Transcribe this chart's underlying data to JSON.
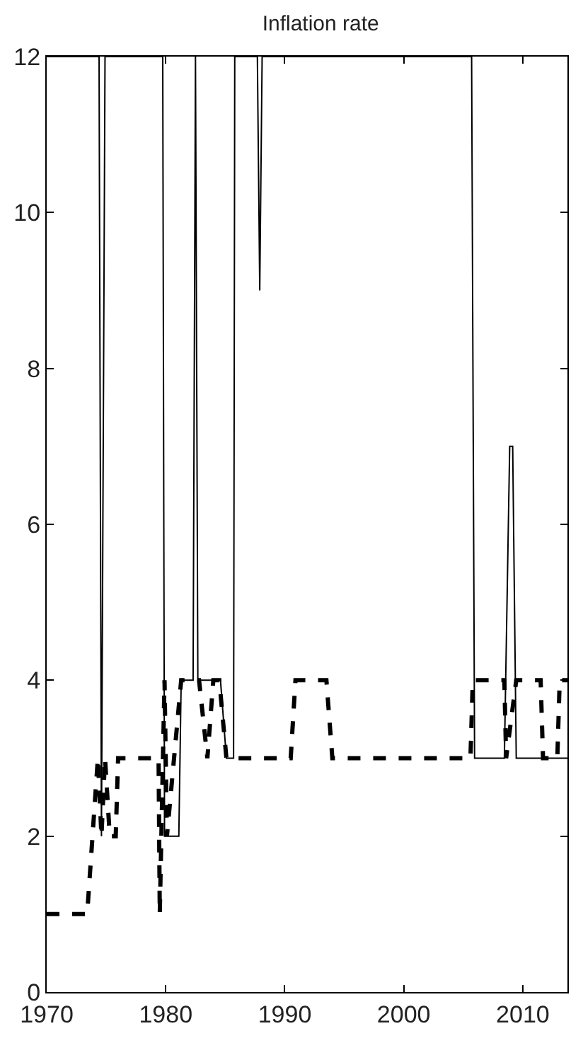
{
  "chart_data": {
    "type": "line",
    "title": "Inflation rate",
    "xlim": [
      1970,
      2013.75
    ],
    "ylim": [
      0,
      12
    ],
    "xticks": [
      1970,
      1980,
      1990,
      2000,
      2010
    ],
    "yticks": [
      0,
      2,
      4,
      6,
      8,
      10,
      12
    ],
    "marker": "none",
    "series": [
      {
        "color": "#000000",
        "line_style": "solid",
        "x": [
          1970,
          1974.4,
          1974.6,
          1974.9,
          1979.75,
          1979.9,
          1981.1,
          1981.3,
          1982.3,
          1982.5,
          1982.7,
          1984.6,
          1985.1,
          1985.7,
          1985.8,
          1987.7,
          1987.9,
          1988.1,
          2005.7,
          2005.95,
          2008.45,
          2008.9,
          2009.15,
          2009.45,
          2013.75
        ],
        "values": [
          12,
          12,
          2,
          12,
          12,
          2,
          2,
          4,
          4,
          12,
          4,
          4,
          3,
          3,
          12,
          12,
          9,
          12,
          12,
          3,
          3,
          7,
          7,
          3,
          3
        ]
      },
      {
        "color": "#000000",
        "line_style": "dashed",
        "x": [
          1970,
          1973.4,
          1974.3,
          1974.6,
          1974.9,
          1975.3,
          1975.8,
          1976.0,
          1979.4,
          1979.5,
          1979.9,
          1980.1,
          1981.3,
          1982.8,
          1983.5,
          1984.0,
          1984.5,
          1985.1,
          1990.5,
          1990.9,
          1993.5,
          1994.0,
          2005.6,
          2005.8,
          2008.45,
          2008.6,
          2009.45,
          2011.5,
          2011.7,
          2012.9,
          2013.1,
          2013.75
        ],
        "values": [
          1,
          1,
          3,
          2,
          3,
          2,
          2,
          3,
          3,
          1,
          4,
          2,
          4,
          4,
          3,
          4,
          4,
          3,
          3,
          4,
          4,
          3,
          3,
          4,
          4,
          3,
          4,
          4,
          3,
          3,
          4,
          4
        ]
      }
    ]
  }
}
